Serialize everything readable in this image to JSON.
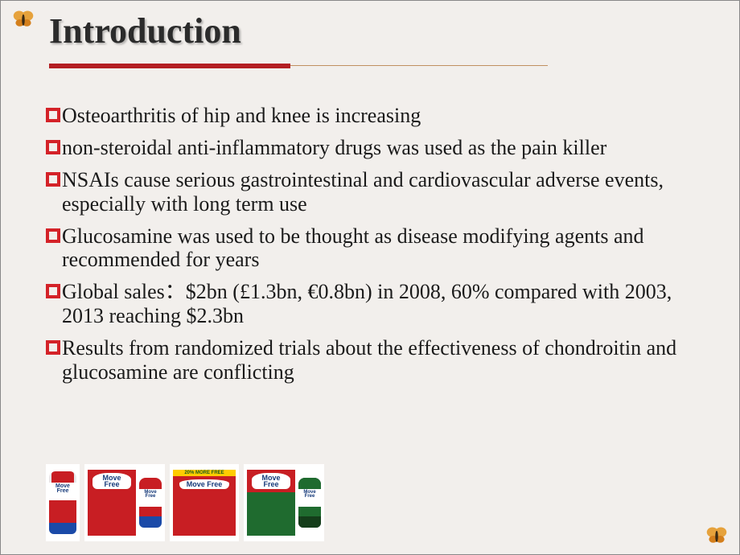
{
  "title": "Introduction",
  "accent_color": "#b31e23",
  "bullet_color": "#d42228",
  "background_color": "#f2efec",
  "text_color": "#1a1a1a",
  "bullets": [
    "Osteoarthritis of hip and knee is increasing",
    "non-steroidal anti-inflammatory drugs was used as the pain killer",
    "NSAIs cause serious gastrointestinal and cardiovascular adverse events, especially with long term use",
    "Glucosamine was used to be thought as disease modifying agents and recommended for years",
    "Global sales：$2bn (£1.3bn, €0.8bn) in 2008, 60% compared with 2003, 2013 reaching $2.3bn",
    "Results from randomized trials about the effectiveness of chondroitin and glucosamine are conflicting"
  ],
  "products": [
    {
      "bottle_cap": "#c81e23",
      "bottle_body": "#e8e8ea",
      "label_top": "#ffffff",
      "label_mid": "#c81e23",
      "label_bot": "#1a4aa8",
      "brand": "Move Free",
      "has_box": false,
      "box_color": null,
      "banner": null
    },
    {
      "bottle_cap": "#c81e23",
      "bottle_body": "#e8e8ea",
      "label_top": "#ffffff",
      "label_mid": "#c81e23",
      "label_bot": "#1a4aa8",
      "brand": "Move Free",
      "has_box": true,
      "box_color": "#c81e23",
      "banner": null
    },
    {
      "bottle_cap": null,
      "bottle_body": null,
      "label_top": null,
      "label_mid": null,
      "label_bot": null,
      "brand": "Move Free",
      "has_box": true,
      "box_color": "#c81e23",
      "banner": "20% MORE FREE",
      "box_only": true,
      "box_wide": true
    },
    {
      "bottle_cap": "#1f6b2f",
      "bottle_body": "#234",
      "label_top": "#ffffff",
      "label_mid": "#1f6b2f",
      "label_bot": "#143d1a",
      "brand": "Move Free",
      "has_box": true,
      "box_color": "#c81e23",
      "banner": null,
      "box_accent": "#1f6b2f"
    }
  ],
  "butterfly_colors": {
    "wing_top": "#e6a23c",
    "wing_bottom": "#d47f1c",
    "body": "#3a2a14"
  }
}
